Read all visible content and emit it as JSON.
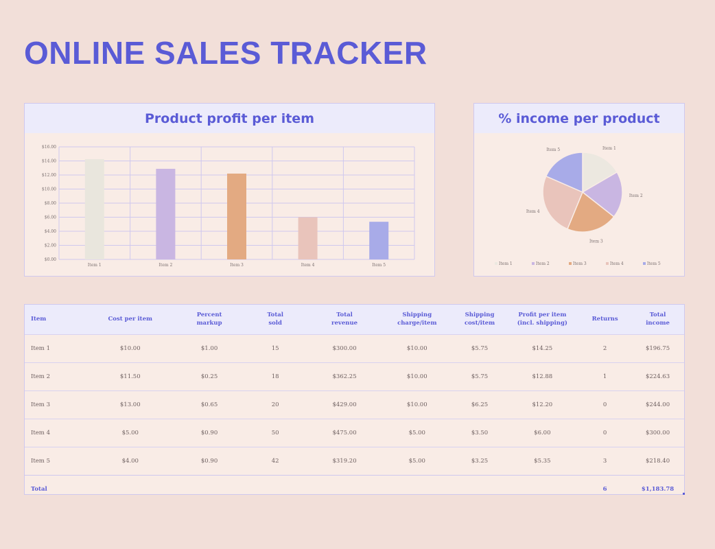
{
  "page": {
    "title": "ONLINE SALES TRACKER"
  },
  "bar_chart": {
    "title": "Product profit per item"
  },
  "pie_chart": {
    "title": "% income per product"
  },
  "chart_data": [
    {
      "type": "bar",
      "title": "Product profit per item",
      "categories": [
        "Item 1",
        "Item 2",
        "Item 3",
        "Item 4",
        "Item 5"
      ],
      "values": [
        14.25,
        12.88,
        12.2,
        6.0,
        5.35
      ],
      "y_ticks": [
        "$0.00",
        "$2.00",
        "$4.00",
        "$6.00",
        "$8.00",
        "$10.00",
        "$12.00",
        "$14.00",
        "$16.00"
      ],
      "ylim": [
        0,
        16
      ],
      "grid": true,
      "colors": [
        "#e9e6dd",
        "#c9b6e2",
        "#e3aa82",
        "#e9c4bb",
        "#a8abe8"
      ]
    },
    {
      "type": "pie",
      "title": "% income per product",
      "categories": [
        "Item 1",
        "Item 2",
        "Item 3",
        "Item 4",
        "Item 5"
      ],
      "values": [
        196.75,
        224.63,
        244.0,
        300.0,
        218.4
      ],
      "colors": [
        "#ece8e0",
        "#c9b6e2",
        "#e3aa82",
        "#e9c4bb",
        "#a8abe8"
      ],
      "legend_placement": "bottom"
    }
  ],
  "table": {
    "headers": [
      "Item",
      "Cost per item",
      "Percent\nmarkup",
      "Total\nsold",
      "Total\nrevenue",
      "Shipping\ncharge/item",
      "Shipping\ncost/item",
      "Profit per item\n(incl. shipping)",
      "Returns",
      "Total\nincome"
    ],
    "rows": [
      [
        "Item 1",
        "$10.00",
        "$1.00",
        "15",
        "$300.00",
        "$10.00",
        "$5.75",
        "$14.25",
        "2",
        "$196.75"
      ],
      [
        "Item 2",
        "$11.50",
        "$0.25",
        "18",
        "$362.25",
        "$10.00",
        "$5.75",
        "$12.88",
        "1",
        "$224.63"
      ],
      [
        "Item 3",
        "$13.00",
        "$0.65",
        "20",
        "$429.00",
        "$10.00",
        "$6.25",
        "$12.20",
        "0",
        "$244.00"
      ],
      [
        "Item 4",
        "$5.00",
        "$0.90",
        "50",
        "$475.00",
        "$5.00",
        "$3.50",
        "$6.00",
        "0",
        "$300.00"
      ],
      [
        "Item 5",
        "$4.00",
        "$0.90",
        "42",
        "$319.20",
        "$5.00",
        "$3.25",
        "$5.35",
        "3",
        "$218.40"
      ]
    ],
    "total": [
      "Total",
      "",
      "",
      "",
      "",
      "",
      "",
      "",
      "6",
      "$1,183.78"
    ]
  }
}
